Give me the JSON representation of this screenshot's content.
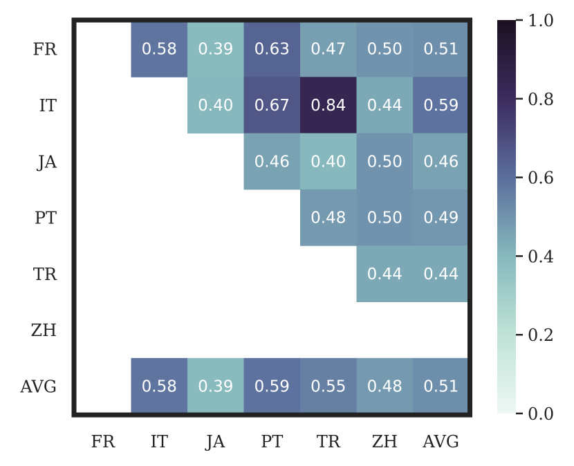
{
  "chart_data": {
    "type": "heatmap",
    "rows": [
      "FR",
      "IT",
      "JA",
      "PT",
      "TR",
      "ZH",
      "AVG"
    ],
    "cols": [
      "FR",
      "IT",
      "JA",
      "PT",
      "TR",
      "ZH",
      "AVG"
    ],
    "values": [
      [
        null,
        0.58,
        0.39,
        0.63,
        0.47,
        0.5,
        0.51
      ],
      [
        null,
        null,
        0.4,
        0.67,
        0.84,
        0.44,
        0.59
      ],
      [
        null,
        null,
        null,
        0.46,
        0.4,
        0.5,
        0.46
      ],
      [
        null,
        null,
        null,
        null,
        0.48,
        0.5,
        0.49
      ],
      [
        null,
        null,
        null,
        null,
        null,
        0.44,
        0.44
      ],
      [
        null,
        null,
        null,
        null,
        null,
        null,
        null
      ],
      [
        null,
        0.58,
        0.39,
        0.59,
        0.55,
        0.48,
        0.51
      ]
    ],
    "value_format": "0.00",
    "colorbar": {
      "range": [
        0.0,
        1.0
      ],
      "ticks": [
        "0.0",
        "0.2",
        "0.4",
        "0.6",
        "0.8",
        "1.0"
      ],
      "colormap_stops": [
        {
          "v": 0.0,
          "color": "#eef8f3"
        },
        {
          "v": 0.2,
          "color": "#bfe3d6"
        },
        {
          "v": 0.4,
          "color": "#86b8bd"
        },
        {
          "v": 0.6,
          "color": "#5b6e9c"
        },
        {
          "v": 0.8,
          "color": "#3c2b5e"
        },
        {
          "v": 1.0,
          "color": "#1b1020"
        }
      ]
    },
    "frame_color": "#222222"
  }
}
